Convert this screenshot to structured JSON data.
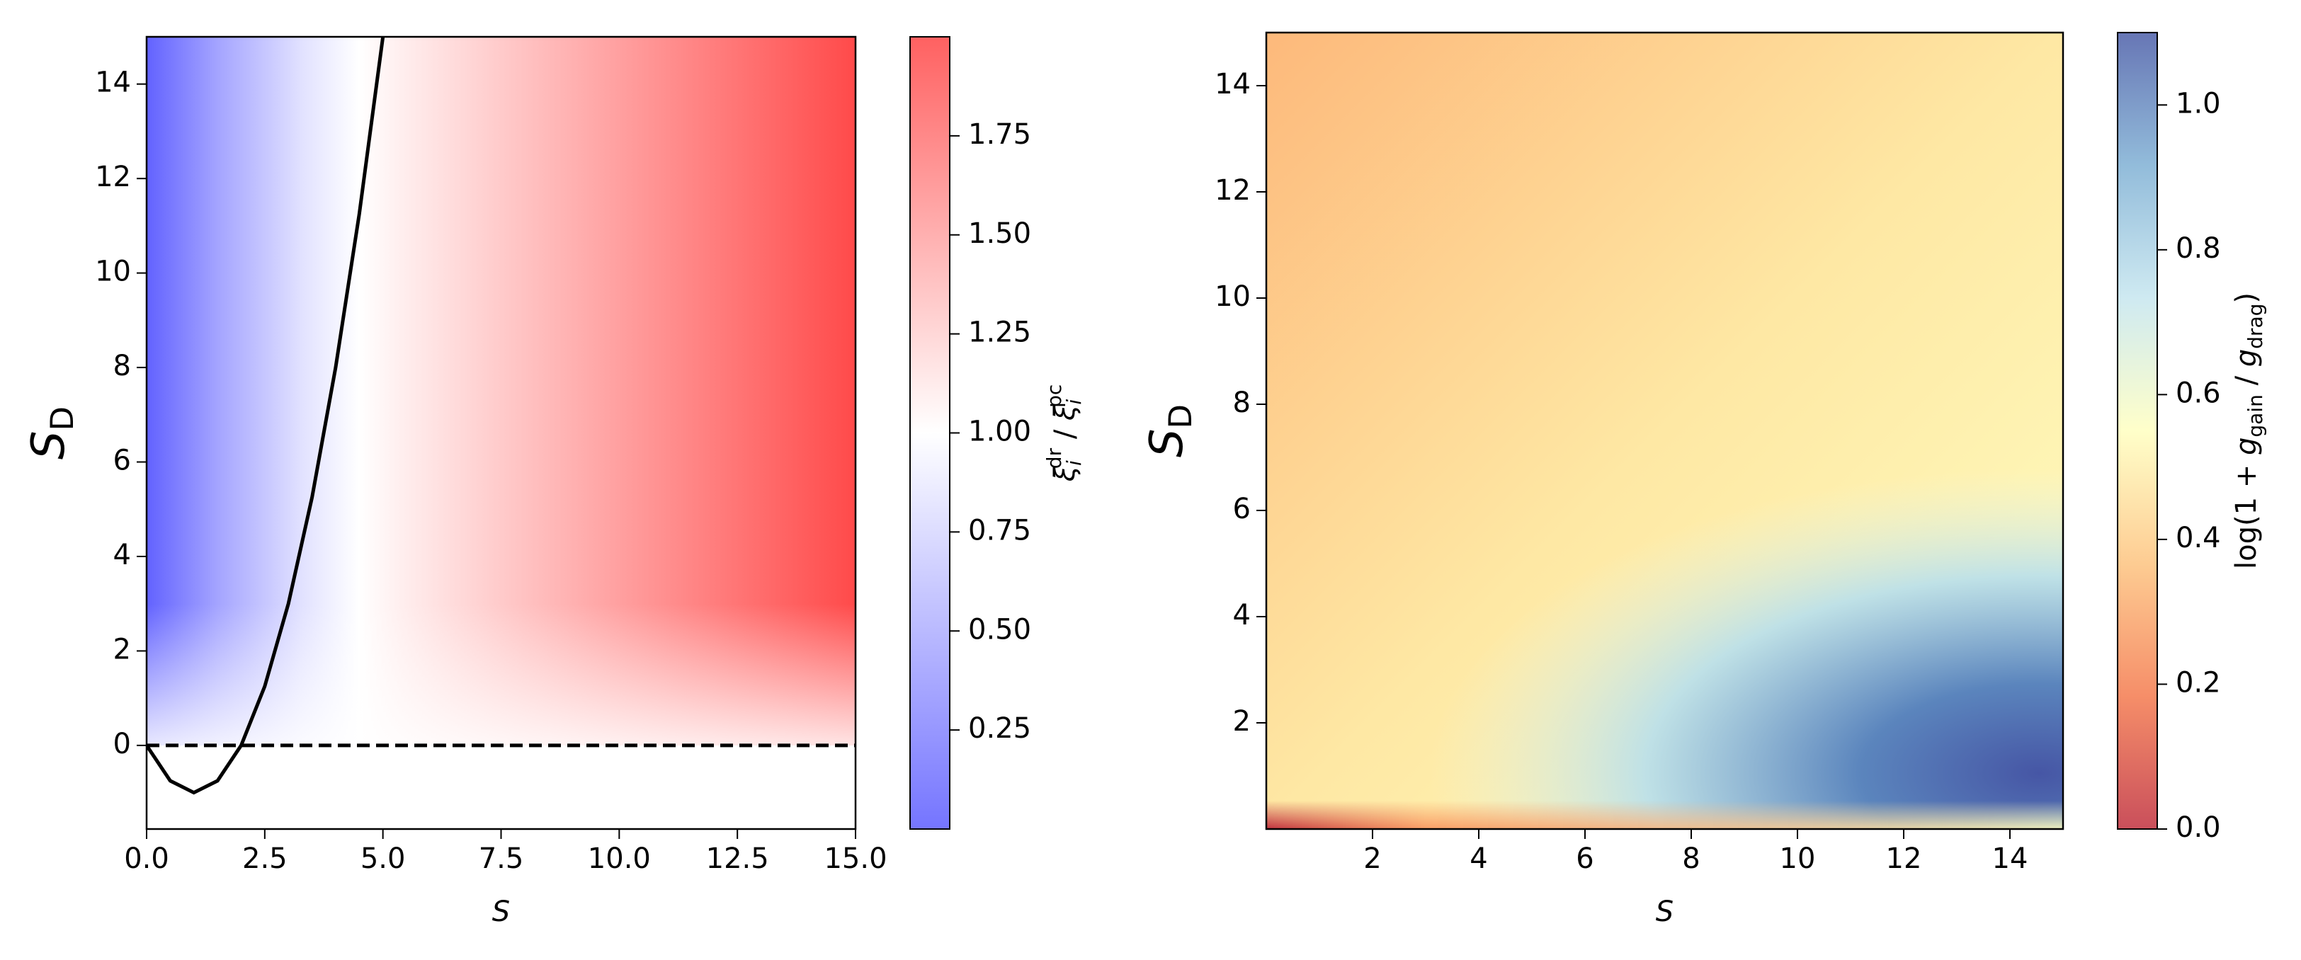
{
  "chart_data": [
    {
      "type": "heatmap",
      "xlabel": "S",
      "ylabel": [
        {
          "text": "S",
          "style": "italic"
        },
        {
          "text": "D",
          "style": "sub"
        }
      ],
      "xlim": [
        0,
        15
      ],
      "ylim": [
        -1.77,
        15
      ],
      "xticks": [
        {
          "value": 0,
          "label": "0.0"
        },
        2.5,
        {
          "value": 5,
          "label": "5.0"
        },
        7.5,
        {
          "value": 10,
          "label": "10.0"
        },
        12.5,
        {
          "value": 15,
          "label": "15.0"
        }
      ],
      "yticks": [
        0,
        2,
        4,
        6,
        8,
        10,
        12,
        14
      ],
      "colormap": [
        "#5c5cff",
        "#ffffff",
        "#ff4545"
      ],
      "clim": [
        0,
        2
      ],
      "cticks": [
        0.25,
        {
          "value": 0.5,
          "label": "0.50"
        },
        0.75,
        {
          "value": 1,
          "label": "1.00"
        },
        1.25,
        {
          "value": 1.5,
          "label": "1.50"
        },
        1.75
      ],
      "clabel": [
        {
          "text": "ξ",
          "style": "italic"
        },
        {
          "text": "i",
          "style": "sub-italic"
        },
        {
          "text": "dr",
          "style": "sup"
        },
        {
          "text": " / "
        },
        {
          "text": "ξ",
          "style": "italic"
        },
        {
          "text": "i",
          "style": "sub-italic"
        },
        {
          "text": "pc",
          "style": "sup"
        }
      ],
      "series": [
        {
          "color": "#000000",
          "dash": false,
          "x": [
            0,
            0.5,
            1,
            1.5,
            2,
            2.5,
            3,
            3.5,
            4,
            4.5,
            5
          ],
          "values": [
            0,
            -0.75,
            -1,
            -0.75,
            0,
            1.25,
            3,
            5.25,
            8,
            11.25,
            15
          ]
        },
        {
          "color": "#000000",
          "dash": true,
          "x": [
            0,
            15
          ],
          "values": [
            0,
            0
          ]
        }
      ]
    },
    {
      "type": "heatmap",
      "xlabel": "S",
      "ylabel": [
        {
          "text": "S",
          "style": "italic"
        },
        {
          "text": "D",
          "style": "sub"
        }
      ],
      "xlim": [
        0,
        15
      ],
      "ylim": [
        0,
        15
      ],
      "xticks": [
        2,
        4,
        6,
        8,
        10,
        12,
        14
      ],
      "yticks": [
        2,
        4,
        6,
        8,
        10,
        12,
        14
      ],
      "colormap": [
        "#c0303e",
        "#f47a4e",
        "#fdc37f",
        "#ffffc0",
        "#c6e6ef",
        "#7fb0d4",
        "#4c5ea8"
      ],
      "clim": [
        0,
        1.1
      ],
      "cticks": [
        {
          "value": 0,
          "label": "0.0"
        },
        0.2,
        0.4,
        0.6,
        0.8,
        {
          "value": 1,
          "label": "1.0"
        }
      ],
      "clabel": [
        {
          "text": "log(1 + "
        },
        {
          "text": "g",
          "style": "italic"
        },
        {
          "text": "gain",
          "style": "sub"
        },
        {
          "text": " / "
        },
        {
          "text": "g",
          "style": "italic"
        },
        {
          "text": "drag",
          "style": "sub"
        },
        {
          "text": ")"
        }
      ],
      "series": []
    }
  ]
}
